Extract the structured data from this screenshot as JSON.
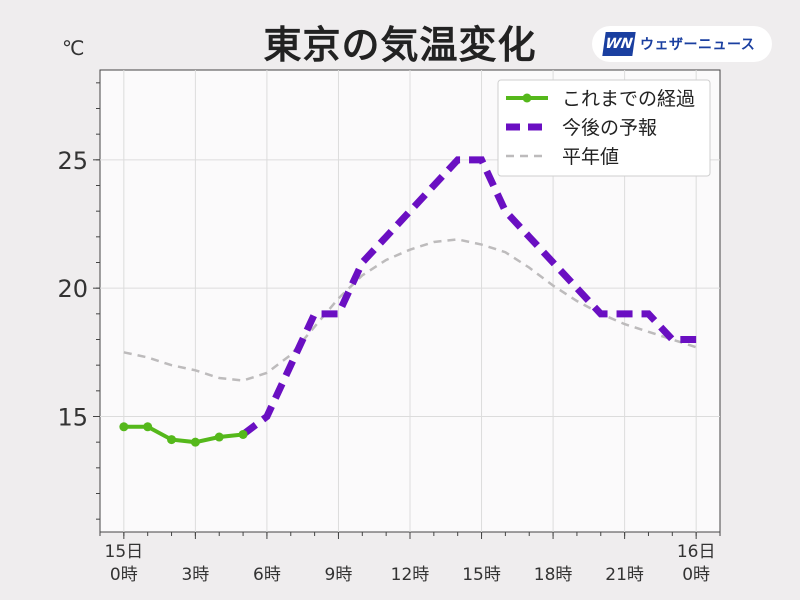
{
  "title": "東京の気温変化",
  "unit": "℃",
  "logo": {
    "mark": "WN",
    "text": "ウェザーニュース"
  },
  "chart_data": {
    "type": "line",
    "x_ticks": [
      {
        "x": 0,
        "day": "15日",
        "hour": "0時"
      },
      {
        "x": 3,
        "day": "",
        "hour": "3時"
      },
      {
        "x": 6,
        "day": "",
        "hour": "6時"
      },
      {
        "x": 9,
        "day": "",
        "hour": "9時"
      },
      {
        "x": 12,
        "day": "",
        "hour": "12時"
      },
      {
        "x": 15,
        "day": "",
        "hour": "15時"
      },
      {
        "x": 18,
        "day": "",
        "hour": "18時"
      },
      {
        "x": 21,
        "day": "",
        "hour": "21時"
      },
      {
        "x": 24,
        "day": "16日",
        "hour": "0時"
      }
    ],
    "xlim": [
      -1,
      25
    ],
    "ylim": [
      10.5,
      28.5
    ],
    "y_ticks": [
      15,
      20,
      25
    ],
    "grid": true,
    "legend_position": "top-right",
    "series": [
      {
        "name": "これまでの経過",
        "color": "#55b81b",
        "style": "solid-markers",
        "x": [
          0,
          1,
          2,
          3,
          4,
          5
        ],
        "y": [
          14.6,
          14.6,
          14.1,
          14.0,
          14.2,
          14.3
        ]
      },
      {
        "name": "今後の予報",
        "color": "#6a0fc2",
        "style": "dashed-thick",
        "x": [
          5,
          6,
          7,
          8,
          9,
          10,
          11,
          12,
          13,
          14,
          15,
          16,
          17,
          18,
          19,
          20,
          21,
          22,
          23,
          24
        ],
        "y": [
          14.3,
          15.0,
          17.0,
          19.0,
          19.0,
          21.0,
          22.0,
          23.0,
          24.0,
          25.0,
          25.0,
          23.0,
          22.0,
          21.0,
          20.0,
          19.0,
          19.0,
          19.0,
          18.0,
          18.0
        ]
      },
      {
        "name": "平年値",
        "color": "#bdbbbc",
        "style": "dashed-thin",
        "x": [
          0,
          1,
          2,
          3,
          4,
          5,
          6,
          7,
          8,
          9,
          10,
          11,
          12,
          13,
          14,
          15,
          16,
          17,
          18,
          19,
          20,
          21,
          22,
          23,
          24
        ],
        "y": [
          17.5,
          17.3,
          17.0,
          16.8,
          16.5,
          16.4,
          16.7,
          17.4,
          18.5,
          19.6,
          20.5,
          21.1,
          21.5,
          21.8,
          21.9,
          21.7,
          21.4,
          20.8,
          20.1,
          19.5,
          19.0,
          18.6,
          18.3,
          18.0,
          17.7
        ]
      }
    ]
  }
}
